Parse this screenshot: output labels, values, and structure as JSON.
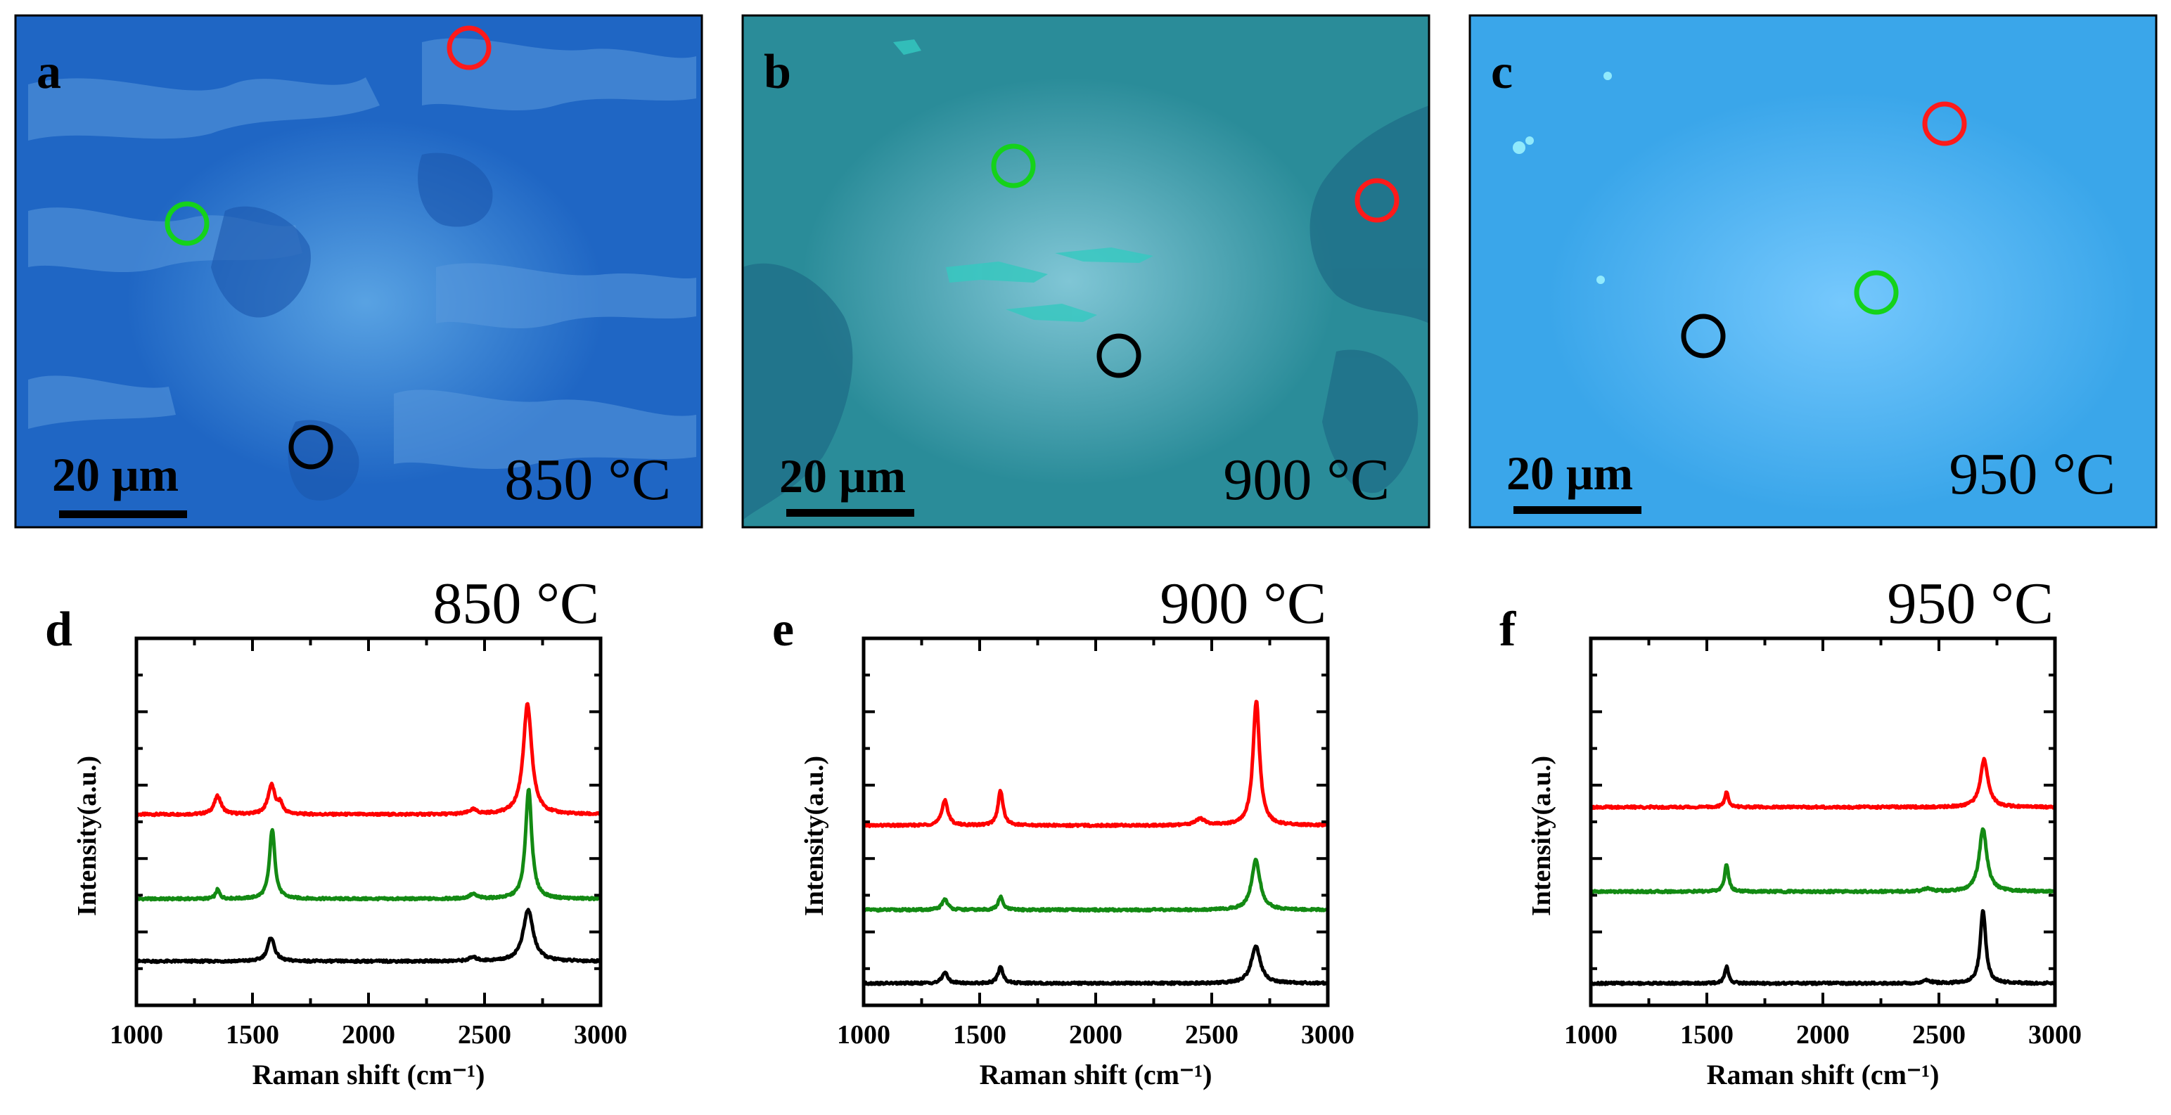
{
  "micrographs": [
    {
      "letter": "a",
      "temperature": "850 °C",
      "scale_bar": "20 μm",
      "background_color": "#1f66c4",
      "marker_colors": {
        "red": "#ff1a1a",
        "green": "#15d21a",
        "black": "#000000"
      }
    },
    {
      "letter": "b",
      "temperature": "900 °C",
      "scale_bar": "20 μm",
      "background_color": "#2a8c99",
      "marker_colors": {
        "red": "#ff1a1a",
        "green": "#15d21a",
        "black": "#000000"
      }
    },
    {
      "letter": "c",
      "temperature": "950 °C",
      "scale_bar": "20 μm",
      "background_color": "#3aa6ea",
      "marker_colors": {
        "red": "#ff1a1a",
        "green": "#15d21a",
        "black": "#000000"
      }
    }
  ],
  "chart_data": [
    {
      "type": "line",
      "panel": "d",
      "title": "850 °C",
      "xlabel": "Raman shift (cm⁻¹)",
      "ylabel": "Intensity(a.u.)",
      "xlim": [
        1000,
        3000
      ],
      "ylim": [
        0,
        10
      ],
      "x_ticks": [
        1000,
        1500,
        2000,
        2500,
        3000
      ],
      "grid": false,
      "series": [
        {
          "name": "red",
          "color": "#ff0000",
          "baseline": 5.2,
          "peaks": [
            [
              1350,
              0.5,
              18
            ],
            [
              1582,
              0.8,
              18
            ],
            [
              1620,
              0.25,
              12
            ],
            [
              2450,
              0.12,
              20
            ],
            [
              2685,
              3.0,
              22
            ]
          ]
        },
        {
          "name": "green",
          "color": "#138a13",
          "baseline": 2.9,
          "peaks": [
            [
              1350,
              0.25,
              10
            ],
            [
              1585,
              1.9,
              14
            ],
            [
              2450,
              0.12,
              20
            ],
            [
              2690,
              3.0,
              16
            ]
          ]
        },
        {
          "name": "black",
          "color": "#000000",
          "baseline": 1.2,
          "peaks": [
            [
              1580,
              0.65,
              18
            ],
            [
              2450,
              0.1,
              20
            ],
            [
              2688,
              1.4,
              26
            ]
          ]
        }
      ]
    },
    {
      "type": "line",
      "panel": "e",
      "title": "900 °C",
      "xlabel": "Raman shift (cm⁻¹)",
      "ylabel": "Intensity(a.u.)",
      "xlim": [
        1000,
        3000
      ],
      "ylim": [
        0,
        10
      ],
      "x_ticks": [
        1000,
        1500,
        2000,
        2500,
        3000
      ],
      "grid": false,
      "series": [
        {
          "name": "red",
          "color": "#ff0000",
          "baseline": 4.9,
          "peaks": [
            [
              1350,
              0.7,
              15
            ],
            [
              1590,
              0.95,
              13
            ],
            [
              2450,
              0.18,
              25
            ],
            [
              2692,
              3.4,
              17
            ]
          ]
        },
        {
          "name": "green",
          "color": "#138a13",
          "baseline": 2.6,
          "peaks": [
            [
              1350,
              0.3,
              14
            ],
            [
              1590,
              0.35,
              12
            ],
            [
              2690,
              1.35,
              22
            ]
          ]
        },
        {
          "name": "black",
          "color": "#000000",
          "baseline": 0.6,
          "peaks": [
            [
              1350,
              0.3,
              14
            ],
            [
              1590,
              0.45,
              13
            ],
            [
              2690,
              1.0,
              24
            ]
          ]
        }
      ]
    },
    {
      "type": "line",
      "panel": "f",
      "title": "950 °C",
      "xlabel": "Raman shift (cm⁻¹)",
      "ylabel": "Intensity(a.u.)",
      "xlim": [
        1000,
        3000
      ],
      "ylim": [
        0,
        10
      ],
      "x_ticks": [
        1000,
        1500,
        2000,
        2500,
        3000
      ],
      "grid": false,
      "series": [
        {
          "name": "red",
          "color": "#ff0000",
          "baseline": 5.4,
          "peaks": [
            [
              1585,
              0.4,
              10
            ],
            [
              2695,
              1.3,
              20
            ]
          ]
        },
        {
          "name": "green",
          "color": "#138a13",
          "baseline": 3.1,
          "peaks": [
            [
              1585,
              0.75,
              10
            ],
            [
              2450,
              0.08,
              20
            ],
            [
              2690,
              1.7,
              20
            ]
          ]
        },
        {
          "name": "black",
          "color": "#000000",
          "baseline": 0.6,
          "peaks": [
            [
              1585,
              0.45,
              10
            ],
            [
              2450,
              0.08,
              20
            ],
            [
              2690,
              2.0,
              14
            ]
          ]
        }
      ]
    }
  ]
}
